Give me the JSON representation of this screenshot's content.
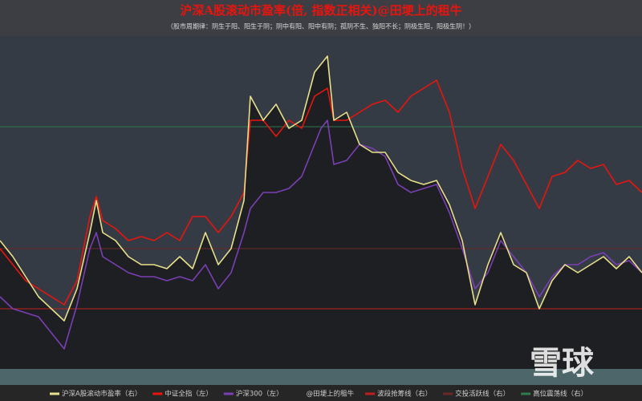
{
  "chart_data": {
    "type": "line",
    "title": "沪深A股滚动市盈率(倍, 指数正相关)@田埂上的租牛",
    "subtitle": "（股市周期律：阴生于阳、阳生于阴；阴中有阳、阳中有阴；孤阴不生、独阳不长；阴极生阳，阳极生阴！）",
    "x": [
      0,
      16,
      32,
      48,
      64,
      80,
      96,
      112,
      120,
      128,
      144,
      160,
      176,
      192,
      208,
      224,
      240,
      256,
      272,
      288,
      304,
      312,
      328,
      344,
      360,
      376,
      392,
      400,
      408,
      416,
      432,
      448,
      464,
      480,
      496,
      512,
      528,
      544,
      560,
      576,
      592,
      608,
      624,
      640,
      656,
      672,
      688,
      704,
      720,
      736,
      752,
      768,
      784,
      800
    ],
    "xlim": [
      0,
      800
    ],
    "ylim": [
      0,
      415
    ],
    "series": [
      {
        "name": "沪深A股滚动市盈率（右）",
        "color": "#e8e08a",
        "fill": "#1e1f22",
        "values": [
          160,
          140,
          115,
          90,
          75,
          60,
          100,
          170,
          210,
          170,
          160,
          140,
          130,
          130,
          125,
          140,
          125,
          170,
          130,
          150,
          210,
          340,
          310,
          330,
          300,
          310,
          370,
          380,
          390,
          310,
          320,
          280,
          270,
          270,
          245,
          235,
          230,
          235,
          205,
          160,
          80,
          130,
          170,
          130,
          120,
          75,
          110,
          130,
          120,
          130,
          140,
          125,
          140,
          120
        ]
      },
      {
        "name": "中证全指（左）",
        "color": "#e8150f",
        "values": [
          150,
          130,
          110,
          100,
          90,
          80,
          110,
          190,
          215,
          185,
          175,
          160,
          165,
          160,
          170,
          160,
          190,
          190,
          170,
          190,
          220,
          310,
          310,
          290,
          310,
          300,
          340,
          345,
          350,
          310,
          310,
          320,
          330,
          335,
          320,
          340,
          350,
          360,
          320,
          250,
          200,
          240,
          280,
          260,
          230,
          200,
          240,
          245,
          260,
          250,
          255,
          230,
          235,
          220
        ]
      },
      {
        "name": "沪深300（左）",
        "color": "#7b3fb5",
        "values": [
          90,
          75,
          70,
          65,
          45,
          25,
          80,
          150,
          170,
          140,
          130,
          120,
          115,
          115,
          110,
          115,
          110,
          130,
          100,
          120,
          170,
          200,
          220,
          220,
          225,
          240,
          280,
          300,
          310,
          255,
          260,
          280,
          275,
          265,
          230,
          220,
          225,
          230,
          195,
          150,
          100,
          120,
          160,
          140,
          120,
          90,
          115,
          130,
          130,
          140,
          145,
          130,
          135,
          120
        ]
      }
    ],
    "legend_note": "@田埂上的租牛",
    "reference_lines": [
      {
        "name": "波段抢筹线（右）",
        "value": 75,
        "color": "#c0201c"
      },
      {
        "name": "交投活跃线（右）",
        "value": 150,
        "color": "#6b2a26"
      },
      {
        "name": "高位震荡线（右）",
        "value": 302,
        "color": "#2f7a4e"
      }
    ],
    "watermark": "雪球"
  }
}
